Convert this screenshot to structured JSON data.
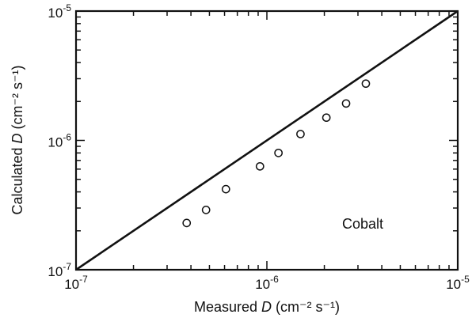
{
  "chart_data": {
    "type": "scatter",
    "title": "",
    "xlabel_prefix": "Measured ",
    "xlabel_var": "D",
    "xlabel_units": "(cm⁻² s⁻¹)",
    "ylabel_prefix": "Calculated ",
    "ylabel_var": "D",
    "ylabel_units": "(cm⁻² s⁻¹)",
    "x_scale": "log",
    "y_scale": "log",
    "xlim": [
      1e-07,
      1e-05
    ],
    "ylim": [
      1e-07,
      1e-05
    ],
    "x_ticks": [
      {
        "value": 1e-07,
        "base": "10",
        "exp": "-7"
      },
      {
        "value": 1e-06,
        "base": "10",
        "exp": "-6"
      },
      {
        "value": 1e-05,
        "base": "10",
        "exp": "-5"
      }
    ],
    "y_ticks": [
      {
        "value": 1e-07,
        "base": "10",
        "exp": "-7"
      },
      {
        "value": 1e-06,
        "base": "10",
        "exp": "-6"
      },
      {
        "value": 1e-05,
        "base": "10",
        "exp": "-5"
      }
    ],
    "grid": false,
    "reference_line": {
      "from": [
        1e-07,
        1e-07
      ],
      "to": [
        1e-05,
        1e-05
      ]
    },
    "annotation": "Cobalt",
    "points": [
      {
        "x": 3.8e-07,
        "y": 2.3e-07
      },
      {
        "x": 4.8e-07,
        "y": 2.9e-07
      },
      {
        "x": 6.1e-07,
        "y": 4.2e-07
      },
      {
        "x": 9.2e-07,
        "y": 6.3e-07
      },
      {
        "x": 1.15e-06,
        "y": 8e-07
      },
      {
        "x": 1.5e-06,
        "y": 1.12e-06
      },
      {
        "x": 2.05e-06,
        "y": 1.5e-06
      },
      {
        "x": 2.6e-06,
        "y": 1.93e-06
      },
      {
        "x": 3.3e-06,
        "y": 2.75e-06
      }
    ]
  }
}
